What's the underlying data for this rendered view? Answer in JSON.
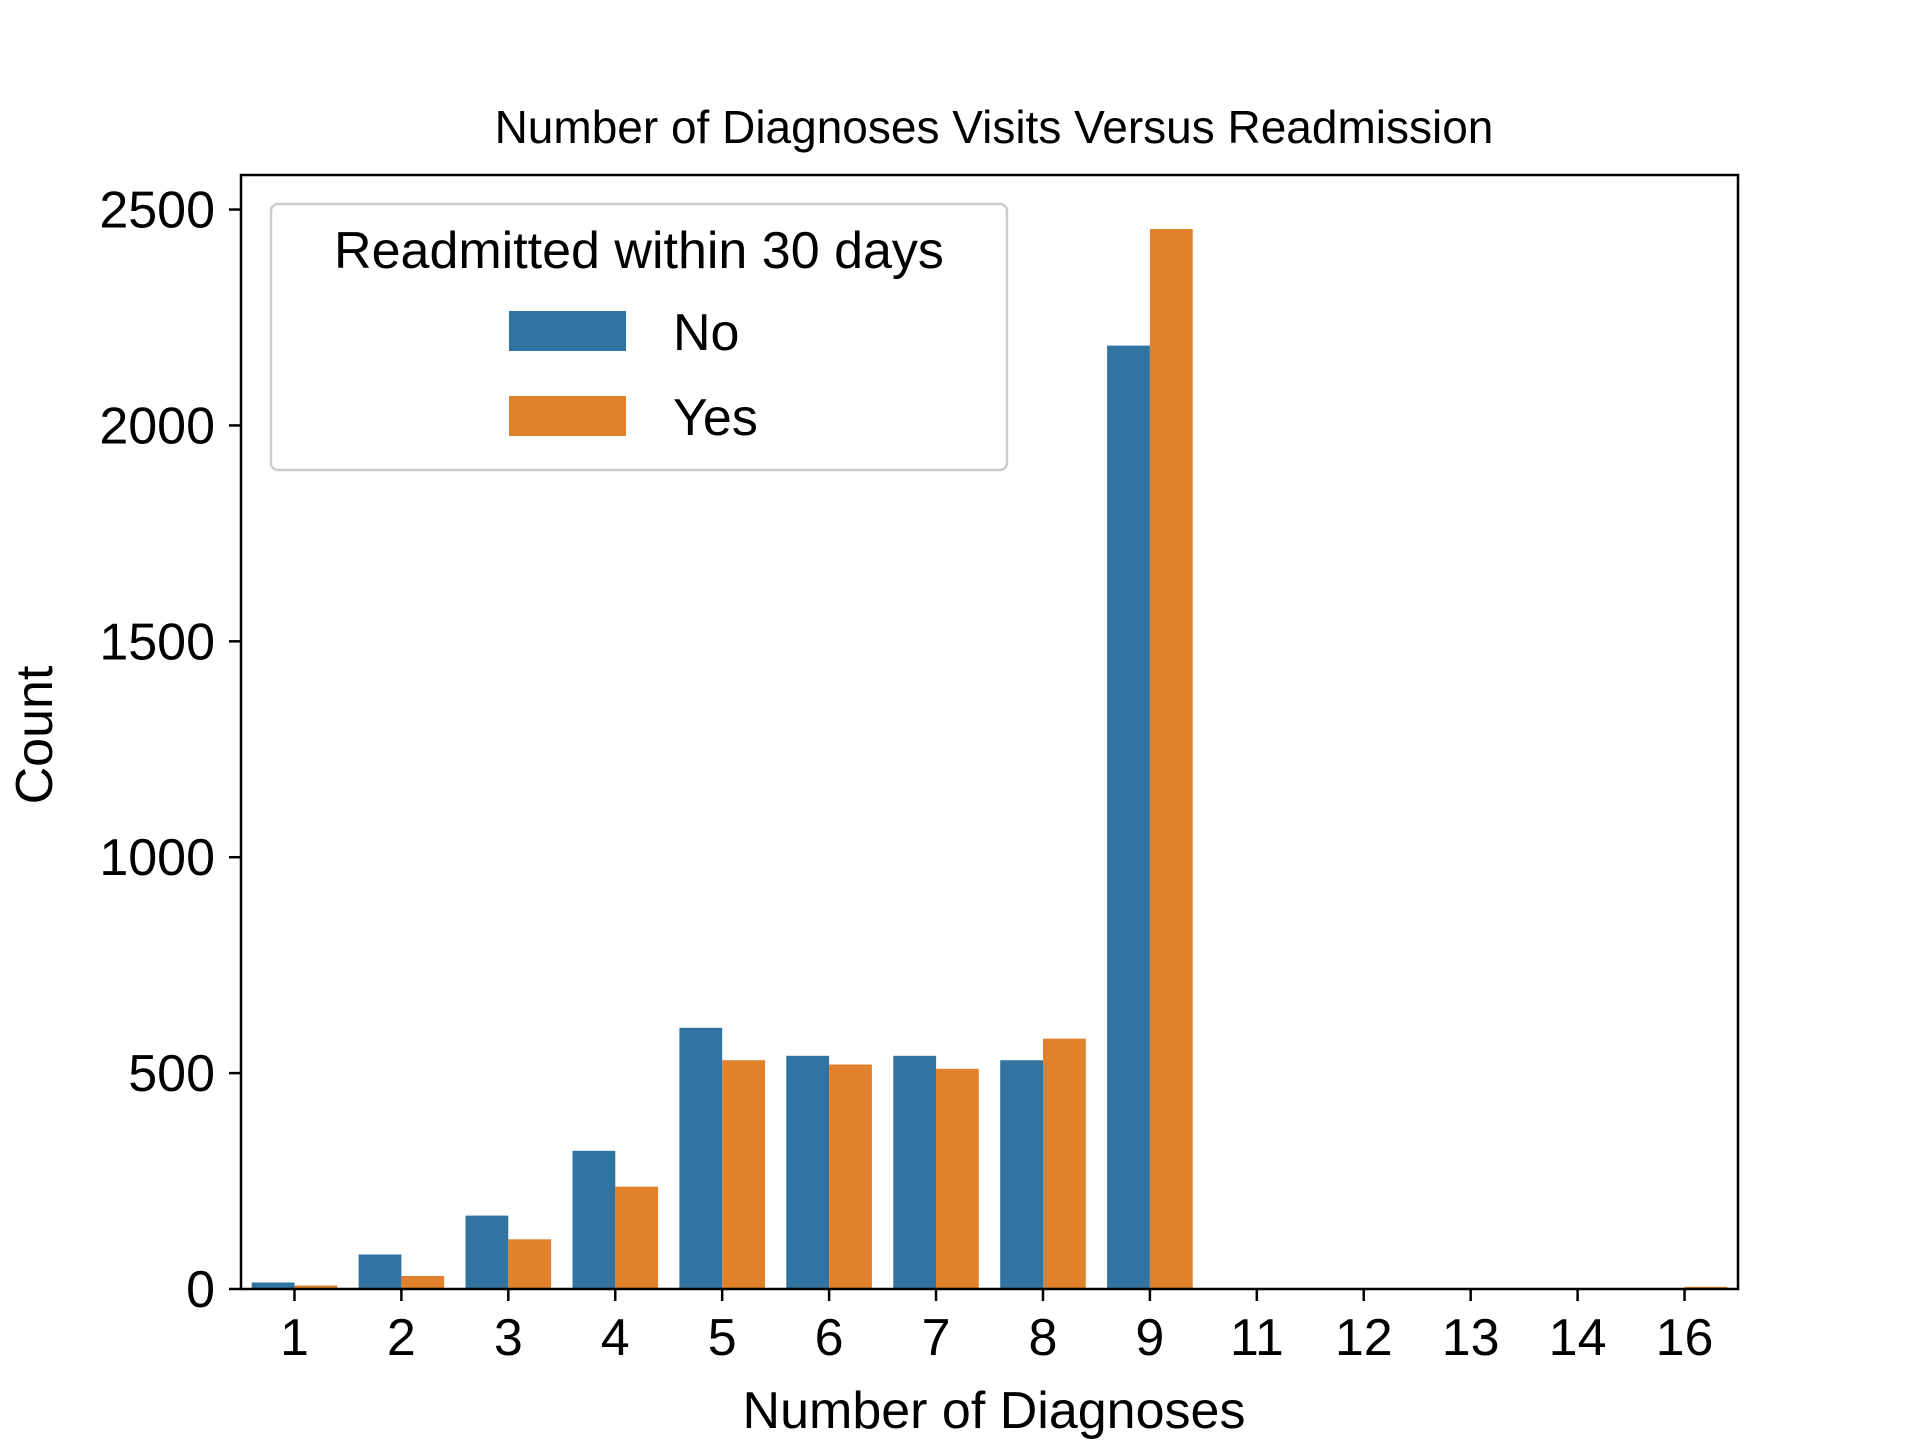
{
  "chart_data": {
    "type": "bar",
    "title": "Number of Diagnoses Visits Versus Readmission",
    "xlabel": "Number of Diagnoses",
    "ylabel": "Count",
    "categories": [
      "1",
      "2",
      "3",
      "4",
      "5",
      "6",
      "7",
      "8",
      "9",
      "11",
      "12",
      "13",
      "14",
      "16"
    ],
    "series": [
      {
        "name": "No",
        "color": "#3274a1",
        "values": [
          15,
          80,
          170,
          320,
          605,
          540,
          540,
          530,
          2185,
          0,
          0,
          0,
          0,
          0
        ]
      },
      {
        "name": "Yes",
        "color": "#e1812c",
        "values": [
          8,
          30,
          115,
          237,
          530,
          520,
          510,
          580,
          2455,
          0,
          0,
          0,
          0,
          5
        ]
      }
    ],
    "ylim": [
      0,
      2580
    ],
    "yticks": [
      0,
      500,
      1000,
      1500,
      2000,
      2500
    ],
    "legend": {
      "title": "Readmitted within 30 days",
      "position": "upper-left"
    },
    "grid": false
  }
}
